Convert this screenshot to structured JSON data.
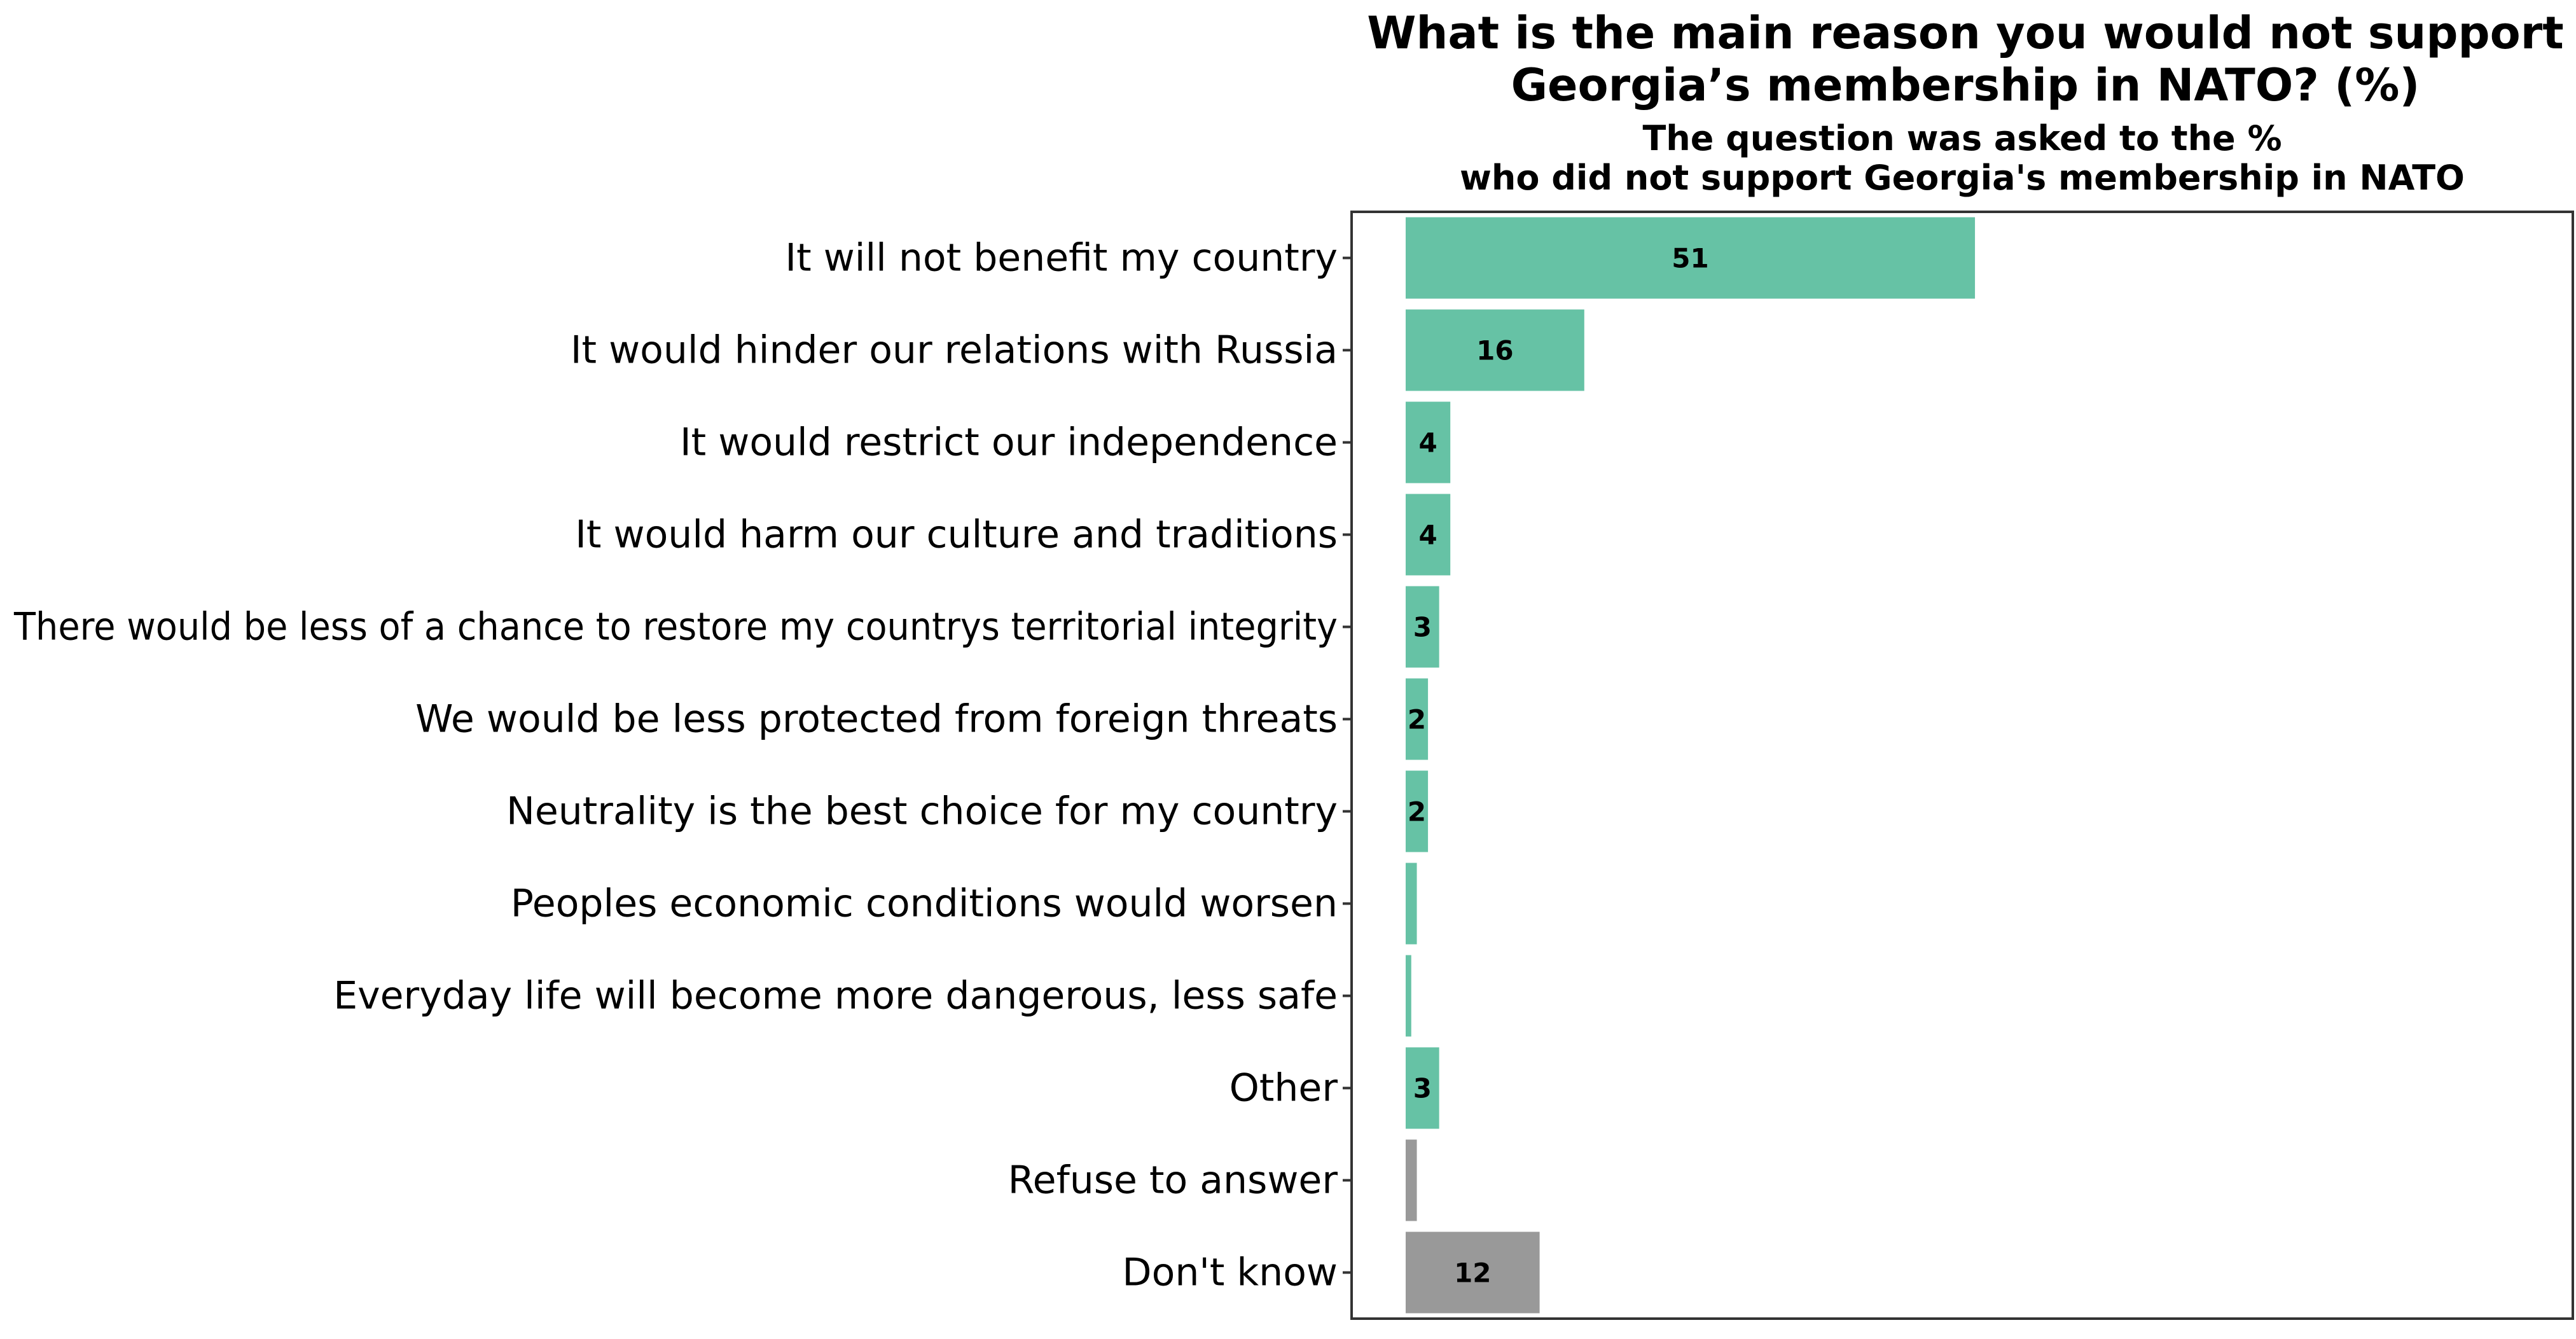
{
  "chart_data": {
    "type": "bar",
    "orientation": "horizontal",
    "title_lines": [
      "What is the main reason you would not support",
      "Georgia’s membership in NATO? (%)"
    ],
    "subtitle_lines": [
      "The question was asked to the %",
      "who did not support Georgia's membership in NATO"
    ],
    "categories": [
      "It will not benefit my country",
      "It would hinder our relations with Russia",
      "It would restrict our independence",
      "It would harm our culture and traditions",
      "There would be less of a chance to restore my countrys territorial integrity",
      "We would be less protected from foreign threats",
      "Neutrality is the best choice for my country",
      "Peoples economic conditions would worsen",
      "Everyday life will become more dangerous, less safe",
      "Other",
      "Refuse to answer",
      "Don't know"
    ],
    "values": [
      51,
      16,
      4,
      4,
      3,
      2,
      2,
      1,
      0.5,
      3,
      1,
      12
    ],
    "data_labels": [
      "51",
      "16",
      "4",
      "4",
      "3",
      "2",
      "2",
      "",
      "",
      "3",
      "",
      "12"
    ],
    "bar_colors": [
      "#66c2a5",
      "#66c2a5",
      "#66c2a5",
      "#66c2a5",
      "#66c2a5",
      "#66c2a5",
      "#66c2a5",
      "#66c2a5",
      "#66c2a5",
      "#66c2a5",
      "#999999",
      "#999999"
    ],
    "xlim": [
      0,
      105
    ],
    "grid": false,
    "legend": "none"
  }
}
